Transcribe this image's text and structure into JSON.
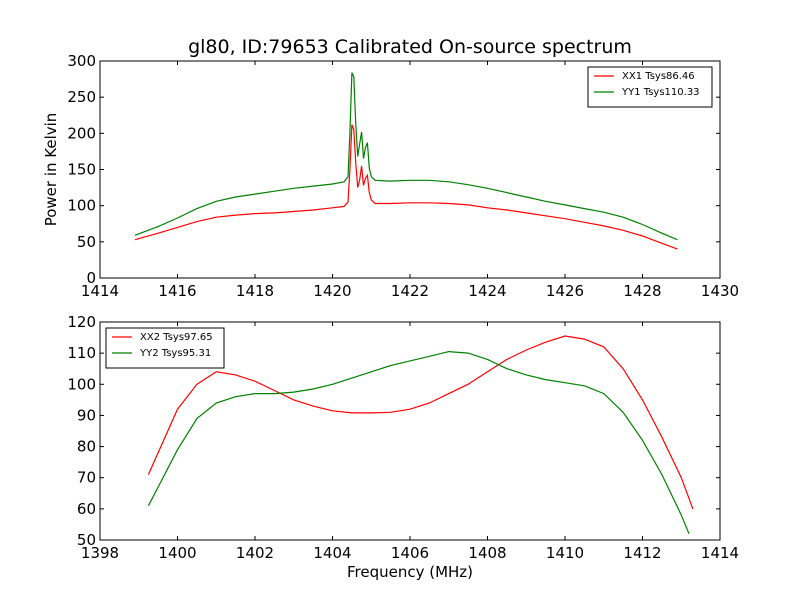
{
  "title": "gl80, ID:79653 Calibrated On-source spectrum",
  "chart_data": [
    {
      "type": "line",
      "title": "gl80, ID:79653 Calibrated On-source spectrum",
      "xlabel": "",
      "ylabel": "Power in Kelvin",
      "xlim": [
        1414,
        1430
      ],
      "ylim": [
        0,
        300
      ],
      "xticks": [
        1414,
        1416,
        1418,
        1420,
        1422,
        1424,
        1426,
        1428,
        1430
      ],
      "yticks": [
        0,
        50,
        100,
        150,
        200,
        250,
        300
      ],
      "grid": false,
      "legend_position": "top-right",
      "series": [
        {
          "name": "XX1 Tsys86.46",
          "color": "#ff0000",
          "points": [
            [
              1414.9,
              53
            ],
            [
              1415.5,
              62
            ],
            [
              1416,
              70
            ],
            [
              1416.5,
              78
            ],
            [
              1417,
              84
            ],
            [
              1417.5,
              87
            ],
            [
              1418,
              89
            ],
            [
              1418.5,
              90
            ],
            [
              1419,
              92
            ],
            [
              1419.5,
              94
            ],
            [
              1420,
              97
            ],
            [
              1420.3,
              99
            ],
            [
              1420.4,
              105
            ],
            [
              1420.45,
              150
            ],
            [
              1420.5,
              212
            ],
            [
              1420.55,
              205
            ],
            [
              1420.6,
              160
            ],
            [
              1420.65,
              125
            ],
            [
              1420.7,
              135
            ],
            [
              1420.75,
              155
            ],
            [
              1420.8,
              128
            ],
            [
              1420.85,
              138
            ],
            [
              1420.9,
              142
            ],
            [
              1420.95,
              118
            ],
            [
              1421,
              108
            ],
            [
              1421.1,
              103
            ],
            [
              1421.5,
              103
            ],
            [
              1422,
              104
            ],
            [
              1422.5,
              104
            ],
            [
              1423,
              103
            ],
            [
              1423.5,
              101
            ],
            [
              1424,
              97
            ],
            [
              1424.5,
              94
            ],
            [
              1425,
              90
            ],
            [
              1425.5,
              86
            ],
            [
              1426,
              82
            ],
            [
              1426.5,
              77
            ],
            [
              1427,
              72
            ],
            [
              1427.5,
              66
            ],
            [
              1428,
              58
            ],
            [
              1428.5,
              48
            ],
            [
              1428.9,
              40
            ]
          ]
        },
        {
          "name": "YY1 Tsys110.33",
          "color": "#008000",
          "points": [
            [
              1414.9,
              59
            ],
            [
              1415.5,
              71
            ],
            [
              1416,
              83
            ],
            [
              1416.5,
              96
            ],
            [
              1417,
              106
            ],
            [
              1417.5,
              112
            ],
            [
              1418,
              116
            ],
            [
              1418.5,
              120
            ],
            [
              1419,
              124
            ],
            [
              1419.5,
              127
            ],
            [
              1420,
              130
            ],
            [
              1420.3,
              133
            ],
            [
              1420.4,
              140
            ],
            [
              1420.45,
              200
            ],
            [
              1420.5,
              284
            ],
            [
              1420.55,
              278
            ],
            [
              1420.6,
              215
            ],
            [
              1420.65,
              168
            ],
            [
              1420.7,
              185
            ],
            [
              1420.75,
              202
            ],
            [
              1420.8,
              165
            ],
            [
              1420.85,
              180
            ],
            [
              1420.9,
              187
            ],
            [
              1420.95,
              152
            ],
            [
              1421,
              140
            ],
            [
              1421.1,
              135
            ],
            [
              1421.5,
              134
            ],
            [
              1422,
              135
            ],
            [
              1422.5,
              135
            ],
            [
              1423,
              133
            ],
            [
              1423.5,
              129
            ],
            [
              1424,
              124
            ],
            [
              1424.5,
              118
            ],
            [
              1425,
              112
            ],
            [
              1425.5,
              106
            ],
            [
              1426,
              101
            ],
            [
              1426.5,
              96
            ],
            [
              1427,
              91
            ],
            [
              1427.5,
              84
            ],
            [
              1428,
              74
            ],
            [
              1428.5,
              62
            ],
            [
              1428.9,
              53
            ]
          ]
        }
      ]
    },
    {
      "type": "line",
      "title": "",
      "xlabel": "Frequency (MHz)",
      "ylabel": "",
      "xlim": [
        1398,
        1414
      ],
      "ylim": [
        50,
        120
      ],
      "xticks": [
        1398,
        1400,
        1402,
        1404,
        1406,
        1408,
        1410,
        1412,
        1414
      ],
      "yticks": [
        50,
        60,
        70,
        80,
        90,
        100,
        110,
        120
      ],
      "grid": false,
      "legend_position": "top-left",
      "series": [
        {
          "name": "XX2 Tsys97.65",
          "color": "#ff0000",
          "points": [
            [
              1399.25,
              71
            ],
            [
              1399.5,
              78
            ],
            [
              1400,
              92
            ],
            [
              1400.5,
              100
            ],
            [
              1401,
              104
            ],
            [
              1401.5,
              103
            ],
            [
              1402,
              101
            ],
            [
              1402.5,
              98
            ],
            [
              1403,
              95
            ],
            [
              1403.5,
              93
            ],
            [
              1404,
              91.5
            ],
            [
              1404.5,
              90.8
            ],
            [
              1405,
              90.8
            ],
            [
              1405.5,
              91
            ],
            [
              1406,
              92
            ],
            [
              1406.5,
              94
            ],
            [
              1407,
              97
            ],
            [
              1407.5,
              100
            ],
            [
              1408,
              104
            ],
            [
              1408.5,
              108
            ],
            [
              1409,
              111
            ],
            [
              1409.5,
              113.5
            ],
            [
              1410,
              115.5
            ],
            [
              1410.5,
              114.5
            ],
            [
              1411,
              112
            ],
            [
              1411.5,
              105
            ],
            [
              1412,
              95
            ],
            [
              1412.5,
              83
            ],
            [
              1413,
              70
            ],
            [
              1413.3,
              60
            ]
          ]
        },
        {
          "name": "YY2 Tsys95.31",
          "color": "#008000",
          "points": [
            [
              1399.25,
              61
            ],
            [
              1399.5,
              67
            ],
            [
              1400,
              79
            ],
            [
              1400.5,
              89
            ],
            [
              1401,
              94
            ],
            [
              1401.5,
              96
            ],
            [
              1402,
              97
            ],
            [
              1402.5,
              97
            ],
            [
              1403,
              97.5
            ],
            [
              1403.5,
              98.5
            ],
            [
              1404,
              100
            ],
            [
              1404.5,
              102
            ],
            [
              1405,
              104
            ],
            [
              1405.5,
              106
            ],
            [
              1406,
              107.5
            ],
            [
              1406.5,
              109
            ],
            [
              1407,
              110.5
            ],
            [
              1407.5,
              110
            ],
            [
              1408,
              108
            ],
            [
              1408.5,
              105
            ],
            [
              1409,
              103
            ],
            [
              1409.5,
              101.5
            ],
            [
              1410,
              100.5
            ],
            [
              1410.5,
              99.5
            ],
            [
              1411,
              97
            ],
            [
              1411.5,
              91
            ],
            [
              1412,
              82
            ],
            [
              1412.5,
              71
            ],
            [
              1413,
              58
            ],
            [
              1413.2,
              52
            ]
          ]
        }
      ]
    }
  ]
}
